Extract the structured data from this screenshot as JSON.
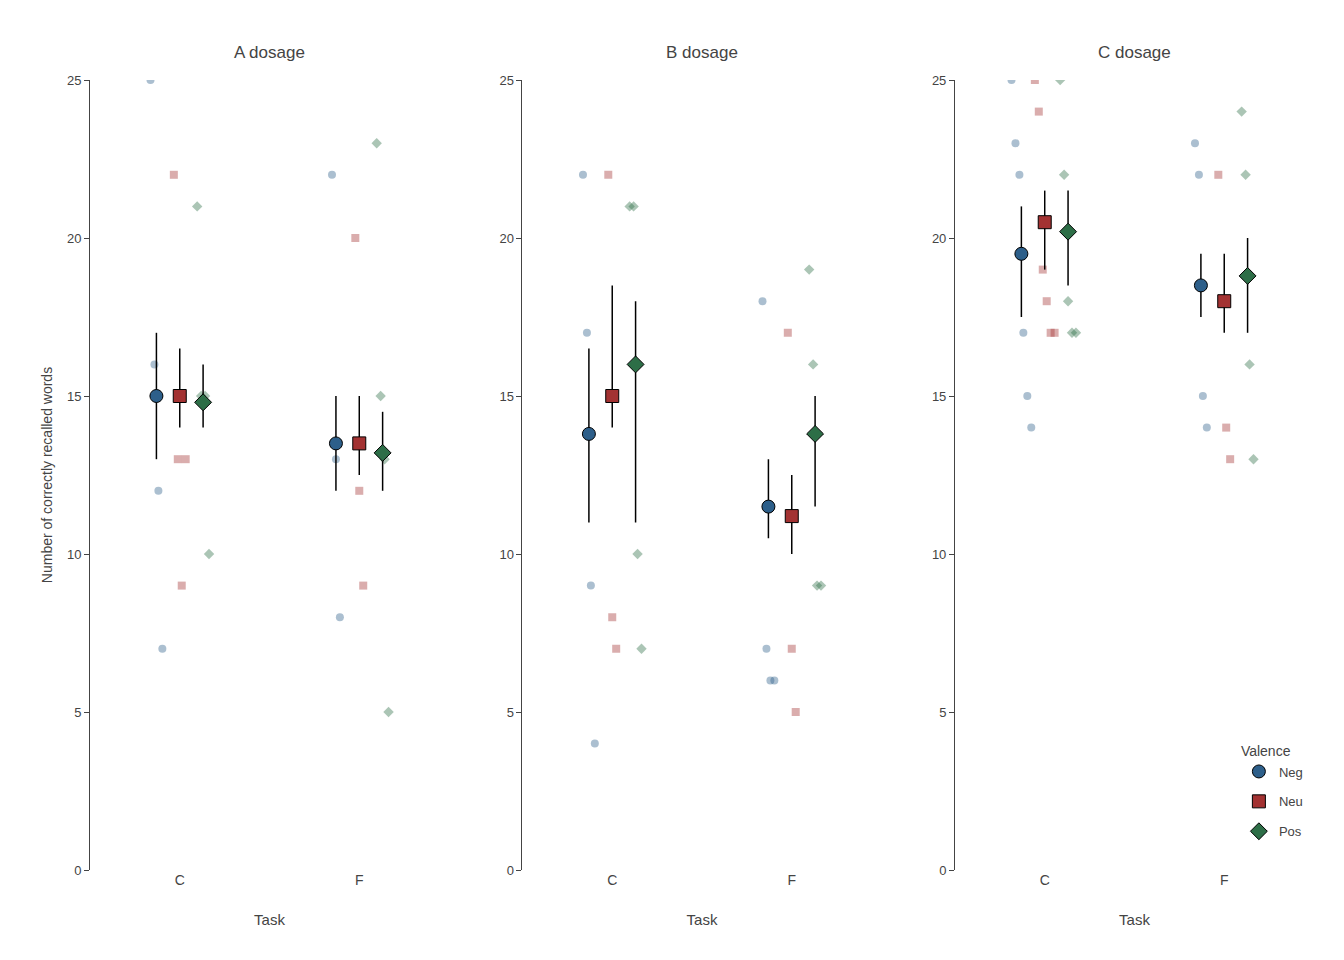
{
  "chart_data": [
    {
      "type": "scatter",
      "title": "A dosage",
      "xlabel": "Task",
      "ylabel": "Number of correctly recalled words",
      "categories": [
        "C",
        "F"
      ],
      "ylim": [
        0,
        25
      ],
      "yticks": [
        0,
        5,
        10,
        15,
        20,
        25
      ],
      "grid": false,
      "series": [
        {
          "name": "Neg",
          "color": "#2d5f8a",
          "marker": "circle",
          "values": [
            15.0,
            13.5
          ],
          "ylo": [
            13.0,
            12.0
          ],
          "yhi": [
            17.0,
            15.0
          ],
          "points": [
            [
              25,
              16,
              12,
              7
            ],
            [
              22,
              13,
              8
            ]
          ]
        },
        {
          "name": "Neu",
          "color": "#a33232",
          "marker": "square",
          "values": [
            15.0,
            13.5
          ],
          "ylo": [
            14.0,
            12.5
          ],
          "yhi": [
            16.5,
            15.0
          ],
          "points": [
            [
              22,
              13,
              9,
              13
            ],
            [
              20,
              12,
              9
            ]
          ]
        },
        {
          "name": "Pos",
          "color": "#2d6e47",
          "marker": "diamond",
          "values": [
            14.8,
            13.2
          ],
          "ylo": [
            14.0,
            12.0
          ],
          "yhi": [
            16.0,
            14.5
          ],
          "points": [
            [
              21,
              15,
              15,
              10
            ],
            [
              23,
              15,
              13,
              5
            ]
          ]
        }
      ]
    },
    {
      "type": "scatter",
      "title": "B dosage",
      "xlabel": "Task",
      "categories": [
        "C",
        "F"
      ],
      "ylim": [
        0,
        25
      ],
      "yticks": [
        0,
        5,
        10,
        15,
        20,
        25
      ],
      "grid": false,
      "series": [
        {
          "name": "Neg",
          "color": "#2d5f8a",
          "marker": "circle",
          "values": [
            13.8,
            11.5
          ],
          "ylo": [
            11.0,
            10.5
          ],
          "yhi": [
            16.5,
            13.0
          ],
          "points": [
            [
              22,
              17,
              9,
              4
            ],
            [
              18,
              7,
              6,
              6
            ]
          ]
        },
        {
          "name": "Neu",
          "color": "#a33232",
          "marker": "square",
          "values": [
            15.0,
            11.2
          ],
          "ylo": [
            14.0,
            10.0
          ],
          "yhi": [
            18.5,
            12.5
          ],
          "points": [
            [
              22,
              8,
              7
            ],
            [
              17,
              7,
              5
            ]
          ]
        },
        {
          "name": "Pos",
          "color": "#2d6e47",
          "marker": "diamond",
          "values": [
            16.0,
            13.8
          ],
          "ylo": [
            11.0,
            11.5
          ],
          "yhi": [
            18.0,
            15.0
          ],
          "points": [
            [
              21,
              21,
              10,
              7
            ],
            [
              19,
              16,
              9,
              9
            ]
          ]
        }
      ]
    },
    {
      "type": "scatter",
      "title": "C dosage",
      "xlabel": "Task",
      "categories": [
        "C",
        "F"
      ],
      "ylim": [
        0,
        25
      ],
      "yticks": [
        0,
        5,
        10,
        15,
        20,
        25
      ],
      "grid": false,
      "legend": "lower right",
      "legend_title": "Valence",
      "series": [
        {
          "name": "Neg",
          "color": "#2d5f8a",
          "marker": "circle",
          "values": [
            19.5,
            18.5
          ],
          "ylo": [
            17.5,
            17.5
          ],
          "yhi": [
            21.0,
            19.5
          ],
          "points": [
            [
              25,
              23,
              22,
              17,
              15,
              14
            ],
            [
              23,
              22,
              15,
              14
            ]
          ]
        },
        {
          "name": "Neu",
          "color": "#a33232",
          "marker": "square",
          "values": [
            20.5,
            18.0
          ],
          "ylo": [
            19.0,
            17.0
          ],
          "yhi": [
            21.5,
            19.5
          ],
          "points": [
            [
              25,
              24,
              19,
              18,
              17,
              17
            ],
            [
              22,
              18,
              14,
              13
            ]
          ]
        },
        {
          "name": "Pos",
          "color": "#2d6e47",
          "marker": "diamond",
          "values": [
            20.2,
            18.8
          ],
          "ylo": [
            18.5,
            17.0
          ],
          "yhi": [
            21.5,
            20.0
          ],
          "points": [
            [
              25,
              22,
              18,
              17,
              17
            ],
            [
              24,
              22,
              16,
              13
            ]
          ]
        }
      ]
    }
  ]
}
